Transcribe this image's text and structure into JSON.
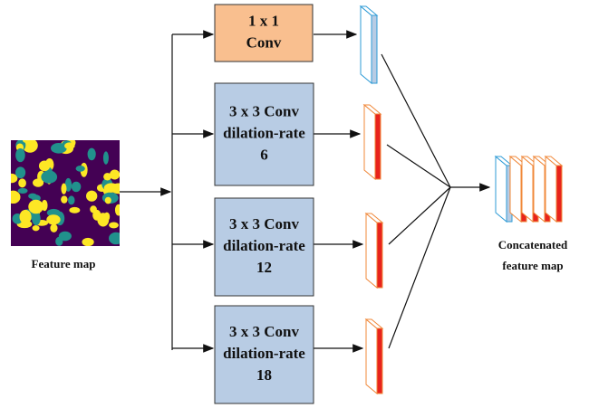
{
  "input": {
    "label": "Feature map"
  },
  "nodes": [
    {
      "lines": [
        "1 x 1",
        "Conv"
      ]
    },
    {
      "lines": [
        "3 x 3 Conv",
        "dilation-rate",
        "6"
      ]
    },
    {
      "lines": [
        "3 x 3 Conv",
        "dilation-rate",
        "12"
      ]
    },
    {
      "lines": [
        "3 x 3 Conv",
        "dilation-rate",
        "18"
      ]
    }
  ],
  "output": {
    "lines": [
      "Concatenated",
      "feature map"
    ]
  }
}
